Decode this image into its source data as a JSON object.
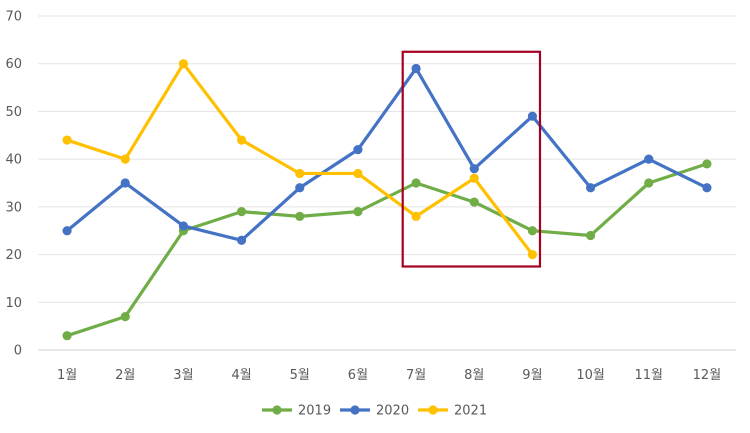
{
  "chart_data": {
    "type": "line",
    "categories": [
      "1월",
      "2월",
      "3월",
      "4월",
      "5월",
      "6월",
      "7월",
      "8월",
      "9월",
      "10월",
      "11월",
      "12월"
    ],
    "ylim": [
      0,
      70
    ],
    "yticks": [
      0,
      10,
      20,
      30,
      40,
      50,
      60,
      70
    ],
    "grid": "horizontal",
    "legend_position": "bottom",
    "series": [
      {
        "name": "2019",
        "color": "#70AD47",
        "values": [
          3,
          7,
          25,
          29,
          28,
          29,
          35,
          31,
          25,
          24,
          35,
          39
        ]
      },
      {
        "name": "2020",
        "color": "#4472C4",
        "values": [
          25,
          35,
          26,
          23,
          34,
          42,
          59,
          38,
          49,
          34,
          40,
          34
        ]
      },
      {
        "name": "2021",
        "color": "#FFC000",
        "values": [
          44,
          40,
          60,
          44,
          37,
          37,
          28,
          36,
          20,
          null,
          null,
          null
        ]
      }
    ],
    "highlight": {
      "categories": [
        "7월",
        "9월"
      ],
      "y_range": [
        17.5,
        62.5
      ],
      "color": "#A50021"
    }
  }
}
